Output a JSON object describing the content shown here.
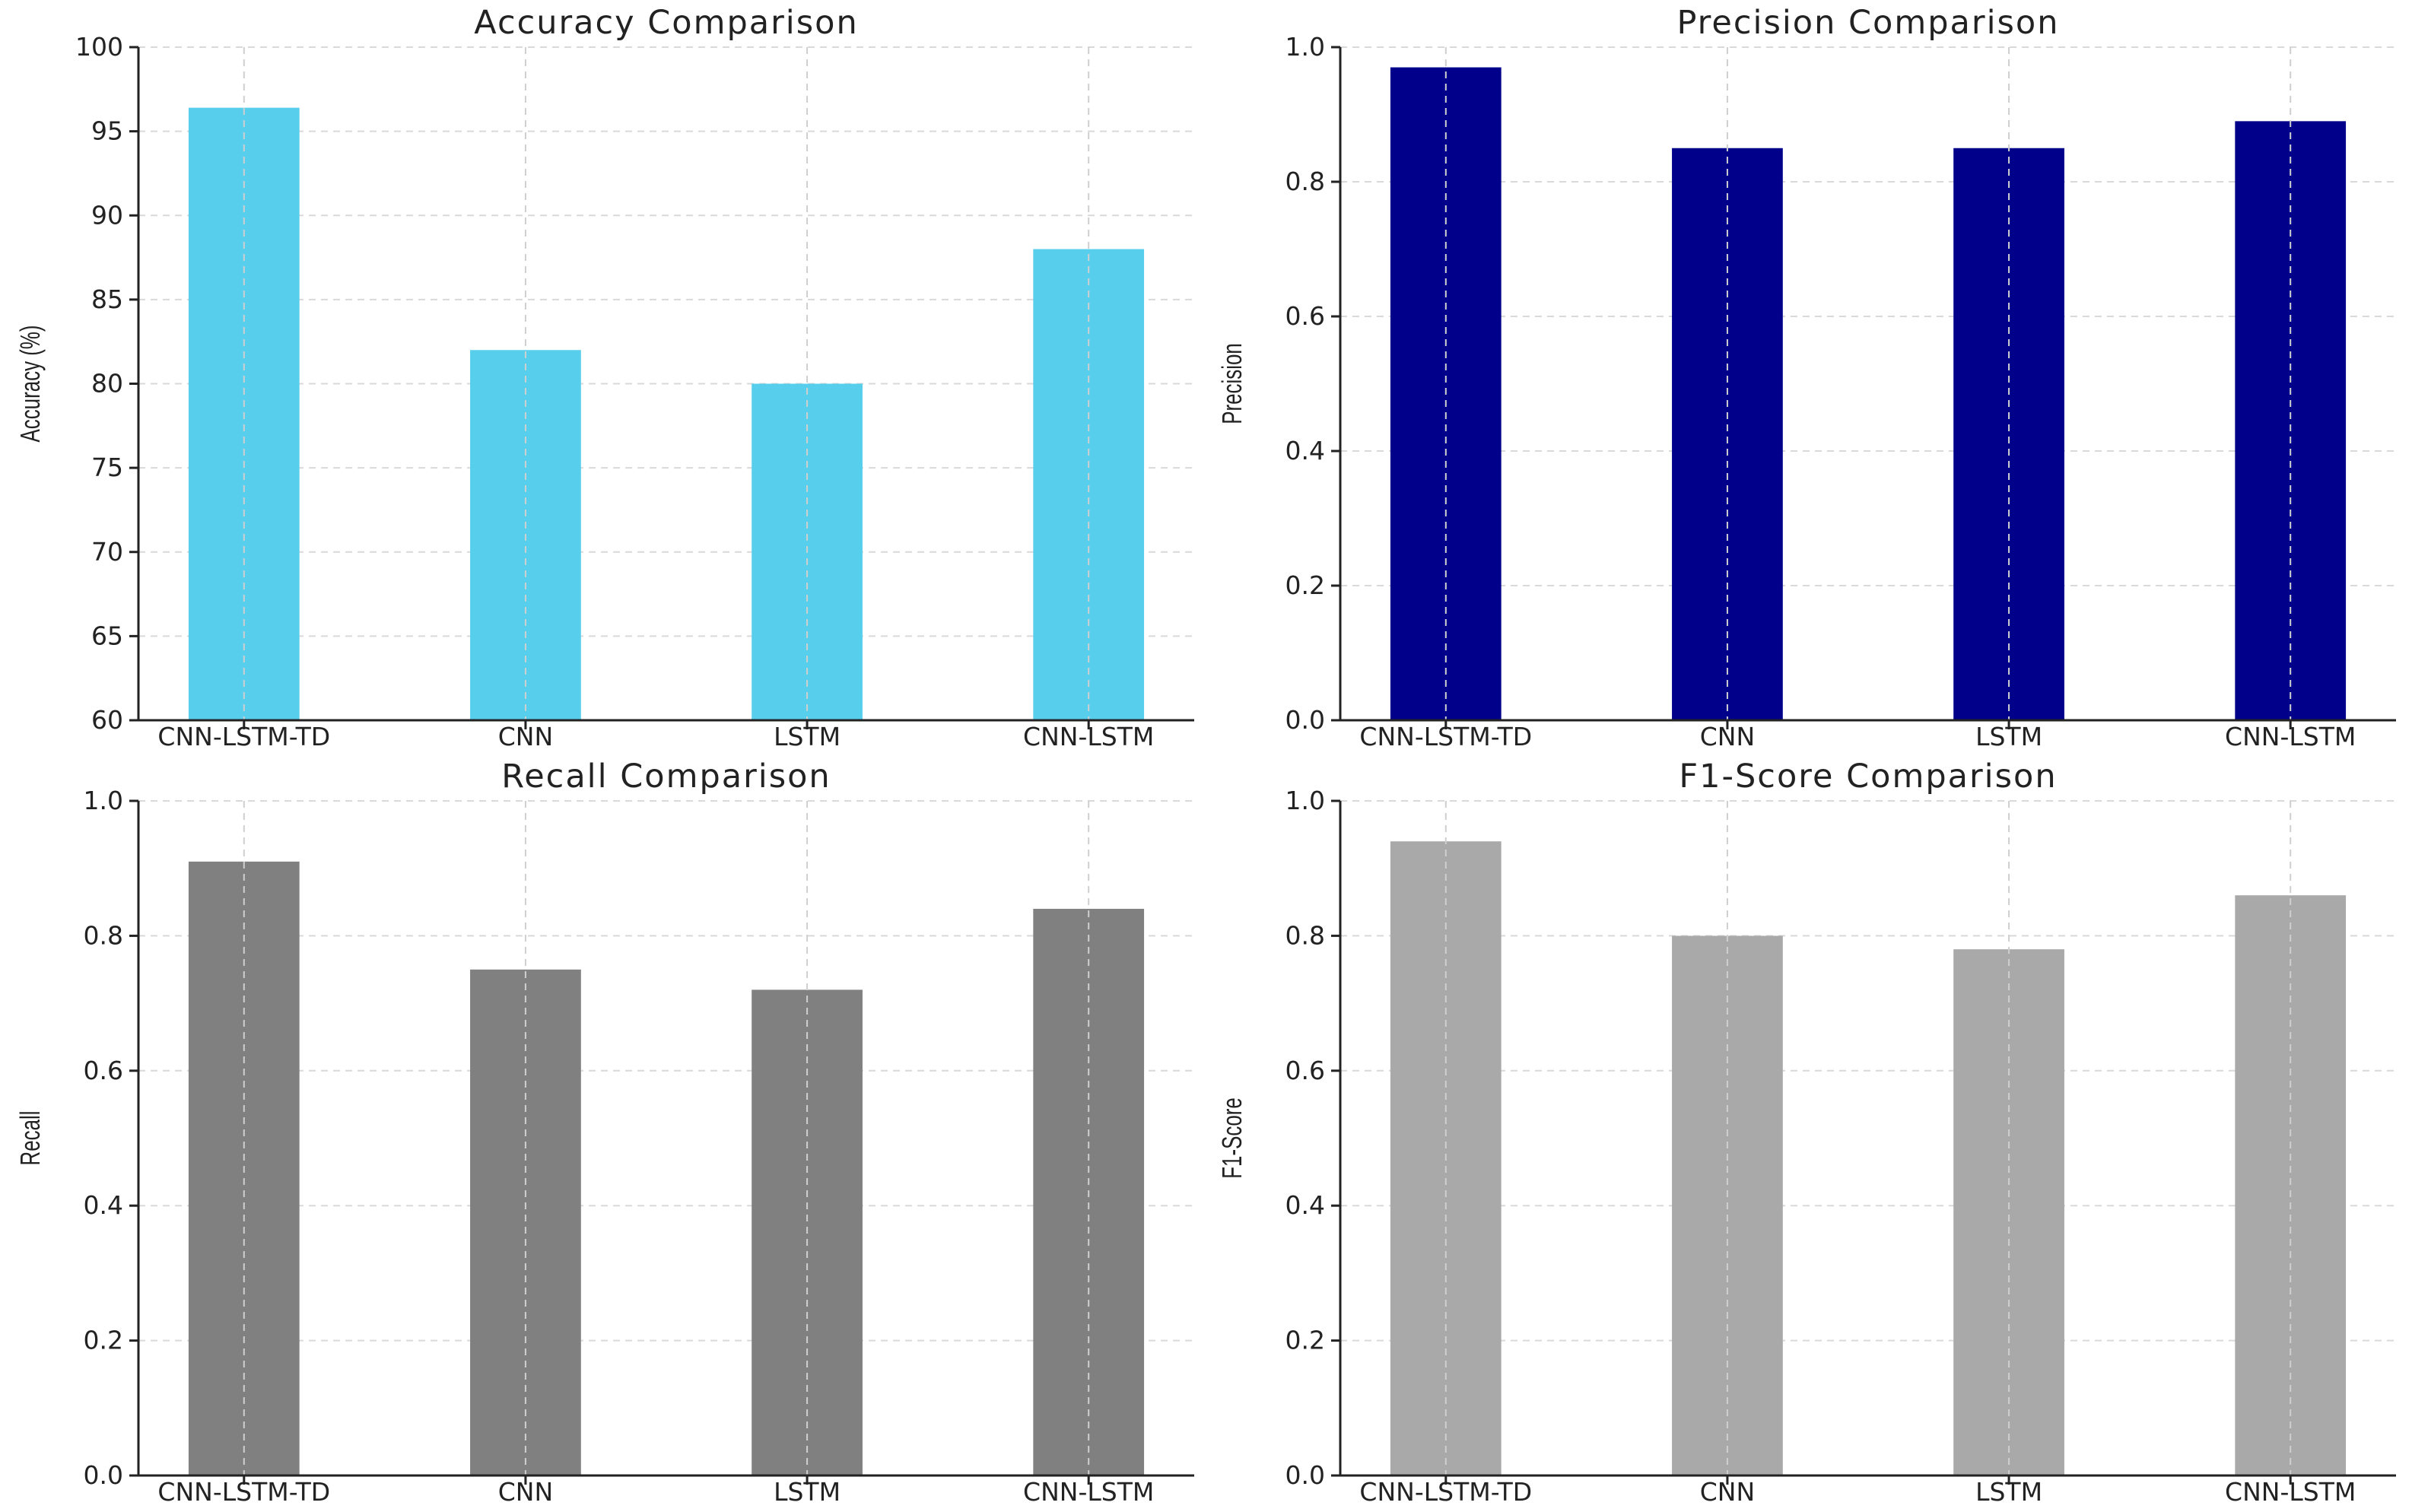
{
  "chart_data": [
    {
      "type": "bar",
      "title": "Accuracy Comparison",
      "xlabel": "",
      "ylabel": "Accuracy (%)",
      "categories": [
        "CNN-LSTM-TD",
        "CNN",
        "LSTM",
        "CNN-LSTM"
      ],
      "values": [
        96.4,
        82,
        80,
        88
      ],
      "ylim": [
        60,
        100
      ],
      "yticks": [
        "60",
        "65",
        "70",
        "75",
        "80",
        "85",
        "90",
        "95",
        "100"
      ],
      "bar_color": "#57CFEC",
      "grid": true,
      "legend": "none"
    },
    {
      "type": "bar",
      "title": "Precision Comparison",
      "xlabel": "",
      "ylabel": "Precision",
      "categories": [
        "CNN-LSTM-TD",
        "CNN",
        "LSTM",
        "CNN-LSTM"
      ],
      "values": [
        0.97,
        0.85,
        0.85,
        0.89
      ],
      "ylim": [
        0,
        1
      ],
      "yticks": [
        "0.0",
        "0.2",
        "0.4",
        "0.6",
        "0.8",
        "1.0"
      ],
      "bar_color": "#00008B",
      "grid": true,
      "legend": "none"
    },
    {
      "type": "bar",
      "title": "Recall Comparison",
      "xlabel": "",
      "ylabel": "Recall",
      "categories": [
        "CNN-LSTM-TD",
        "CNN",
        "LSTM",
        "CNN-LSTM"
      ],
      "values": [
        0.91,
        0.75,
        0.72,
        0.84
      ],
      "ylim": [
        0,
        1
      ],
      "yticks": [
        "0.0",
        "0.2",
        "0.4",
        "0.6",
        "0.8",
        "1.0"
      ],
      "bar_color": "#808080",
      "grid": true,
      "legend": "none"
    },
    {
      "type": "bar",
      "title": "F1-Score Comparison",
      "xlabel": "",
      "ylabel": "F1-Score",
      "categories": [
        "CNN-LSTM-TD",
        "CNN",
        "LSTM",
        "CNN-LSTM"
      ],
      "values": [
        0.94,
        0.8,
        0.78,
        0.86
      ],
      "ylim": [
        0,
        1
      ],
      "yticks": [
        "0.0",
        "0.2",
        "0.4",
        "0.6",
        "0.8",
        "1.0"
      ],
      "bar_color": "#A9A9A9",
      "grid": true,
      "legend": "none"
    }
  ]
}
